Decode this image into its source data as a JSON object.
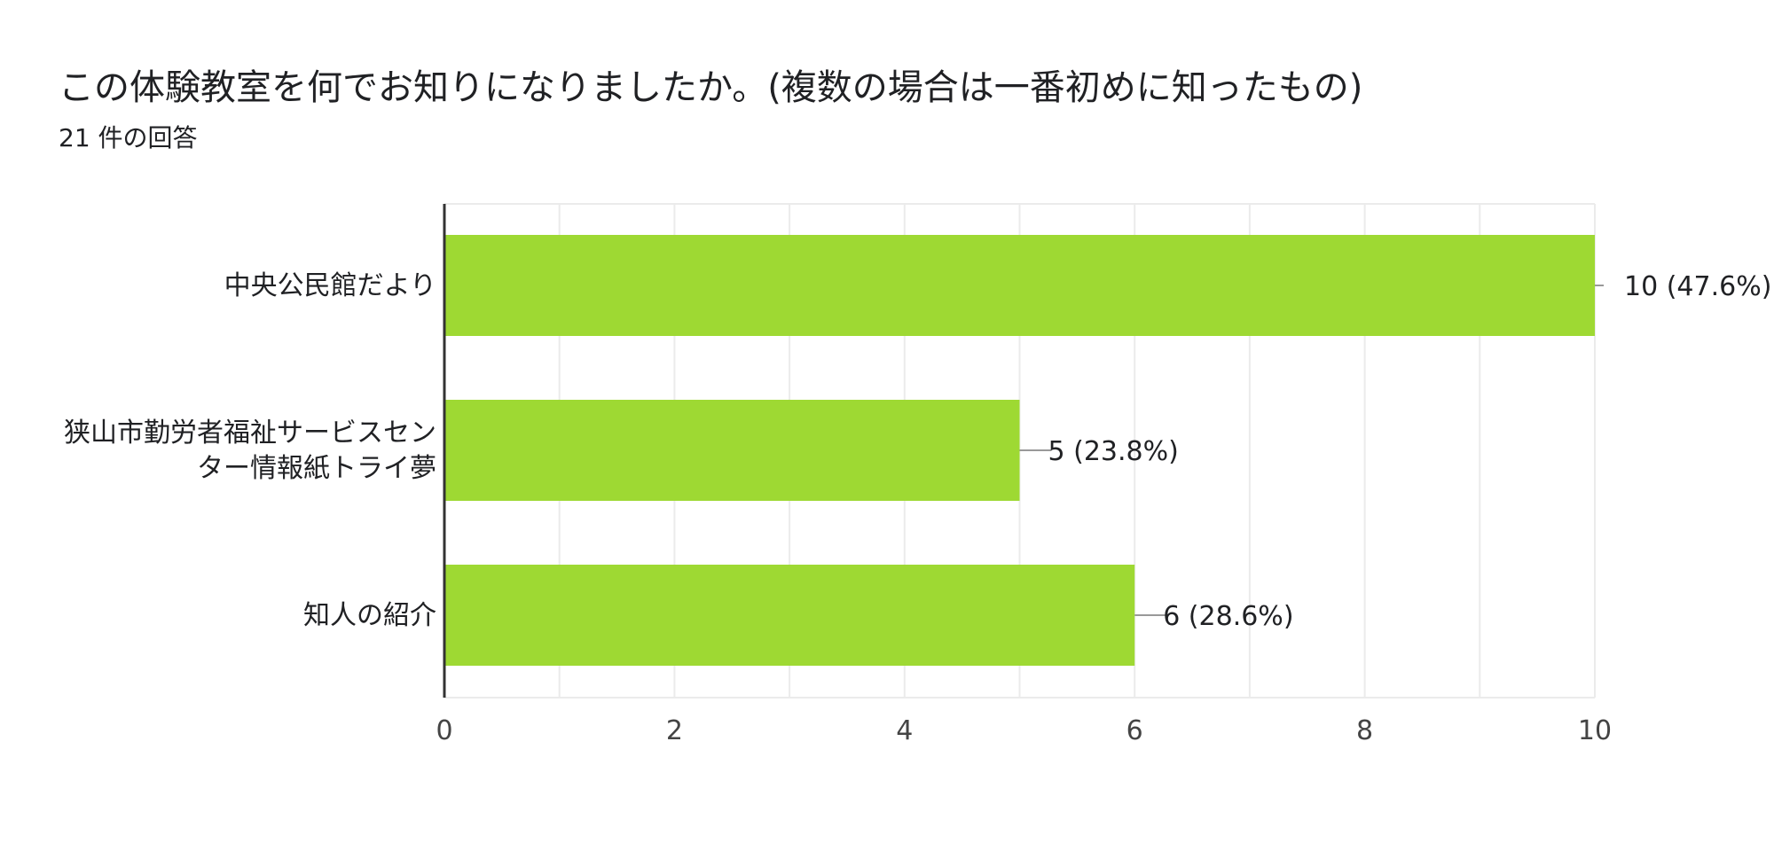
{
  "header": {
    "title": "この体験教室を何でお知りになりましたか。(複数の場合は一番初めに知ったもの)",
    "subtitle": "21 件の回答"
  },
  "colors": {
    "bar": "#9ed933",
    "axis": "#333333",
    "grid": "#ebebeb",
    "leader": "#999999"
  },
  "chart_data": {
    "type": "bar",
    "orientation": "horizontal",
    "categories": [
      [
        "中央公民館だより"
      ],
      [
        "狭山市勤労者福祉サービスセン",
        "ター情報紙トライ夢"
      ],
      [
        "知人の紹介"
      ]
    ],
    "values": [
      10,
      5,
      6
    ],
    "data_labels": [
      "10 (47.6%)",
      "5 (23.8%)",
      "6 (28.6%)"
    ],
    "xlim": [
      0,
      10
    ],
    "x_ticks": [
      0,
      2,
      4,
      6,
      8,
      10
    ],
    "grid": true,
    "legend": false
  }
}
